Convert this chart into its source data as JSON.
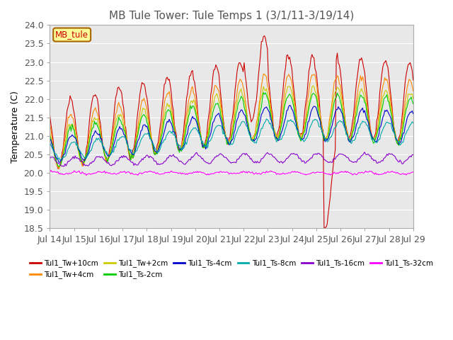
{
  "title": "MB Tule Tower: Tule Temps 1 (3/1/11-3/19/14)",
  "ylabel": "Temperature (C)",
  "ylim": [
    18.5,
    24.0
  ],
  "yticks": [
    18.5,
    19.0,
    19.5,
    20.0,
    20.5,
    21.0,
    21.5,
    22.0,
    22.5,
    23.0,
    23.5,
    24.0
  ],
  "x_labels": [
    "Jul 14",
    "Jul 15",
    "Jul 16",
    "Jul 17",
    "Jul 18",
    "Jul 19",
    "Jul 20",
    "Jul 21",
    "Jul 22",
    "Jul 23",
    "Jul 24",
    "Jul 25",
    "Jul 26",
    "Jul 27",
    "Jul 28",
    "Jul 29"
  ],
  "series_names": [
    "Tul1_Tw+10cm",
    "Tul1_Tw+4cm",
    "Tul1_Tw+2cm",
    "Tul1_Ts-2cm",
    "Tul1_Ts-4cm",
    "Tul1_Ts-8cm",
    "Tul1_Ts-16cm",
    "Tul1_Ts-32cm"
  ],
  "series_colors": [
    "#cc0000",
    "#ff8800",
    "#cccc00",
    "#00cc00",
    "#0000cc",
    "#00aaaa",
    "#8800cc",
    "#ff00ff"
  ],
  "legend_label": "MB_tule",
  "legend_box_color": "#ffff99",
  "legend_box_edgecolor": "#aa6600",
  "background_color": "#ffffff",
  "plot_bg_color": "#e8e8e8",
  "grid_color": "#ffffff",
  "title_fontsize": 11,
  "axis_fontsize": 9,
  "n_days": 15,
  "pts_per_day": 24
}
